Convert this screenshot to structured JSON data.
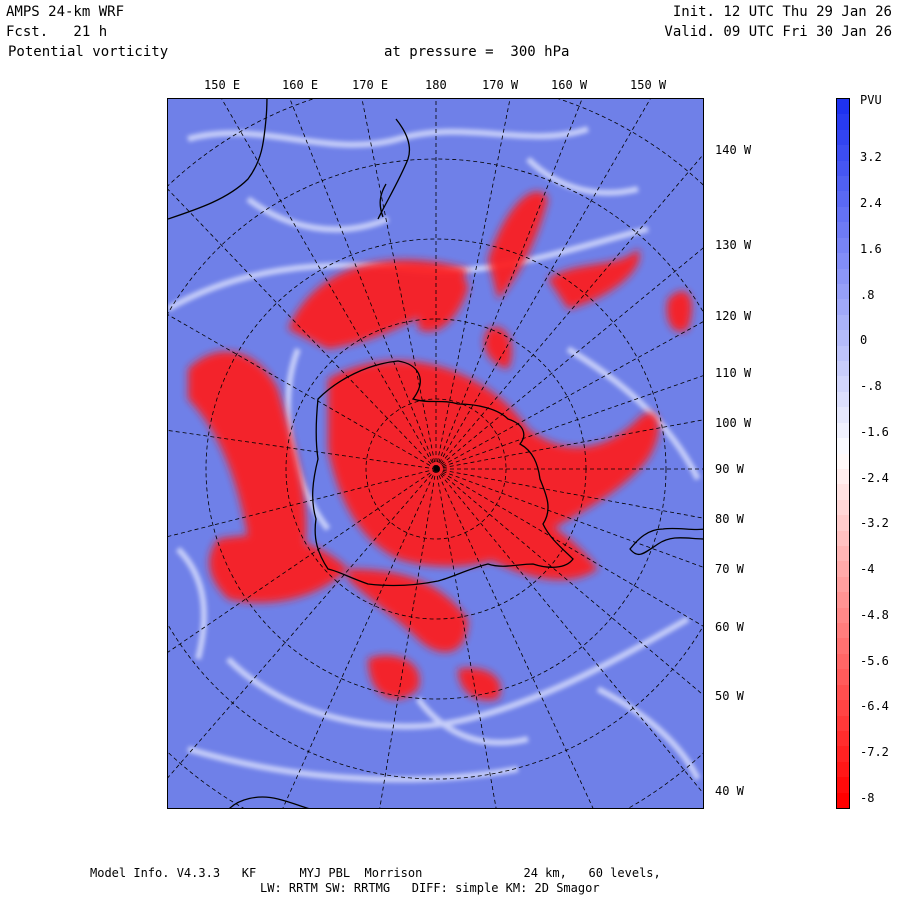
{
  "header": {
    "model": "AMPS 24-km WRF",
    "forecast": "Fcst.   21 h",
    "field": "Potential vorticity",
    "level": "at pressure =  300 hPa",
    "init": "Init. 12 UTC Thu 29 Jan 26",
    "valid": "Valid. 09 UTC Fri 30 Jan 26"
  },
  "longitude_labels_top": [
    "150 E",
    "160 E",
    "170 E",
    "180",
    "170 W",
    "160 W",
    "150 W"
  ],
  "longitude_labels_right": [
    "140 W",
    "130 W",
    "120 W",
    "110 W",
    "100 W",
    "90 W",
    "80 W",
    "70 W",
    "60 W",
    "50 W",
    "40 W"
  ],
  "colorbar": {
    "unit": "PVU",
    "labels": [
      "3.2",
      "2.4",
      "1.6",
      ".8",
      "0",
      "-.8",
      "-1.6",
      "-2.4",
      "-3.2",
      "-4",
      "-4.8",
      "-5.6",
      "-6.4",
      "-7.2",
      "-8"
    ],
    "colors": {
      "max": "#1e32f0",
      "mid": "#ffffff",
      "min": "#ff0000",
      "background": "#6f80e8"
    }
  },
  "footer": {
    "line1": "Model Info. V4.3.3   KF      MYJ PBL  Morrison              24 km,   60 levels,",
    "line2": "LW: RRTM SW: RRTMG   DIFF: simple KM: 2D Smagor"
  }
}
